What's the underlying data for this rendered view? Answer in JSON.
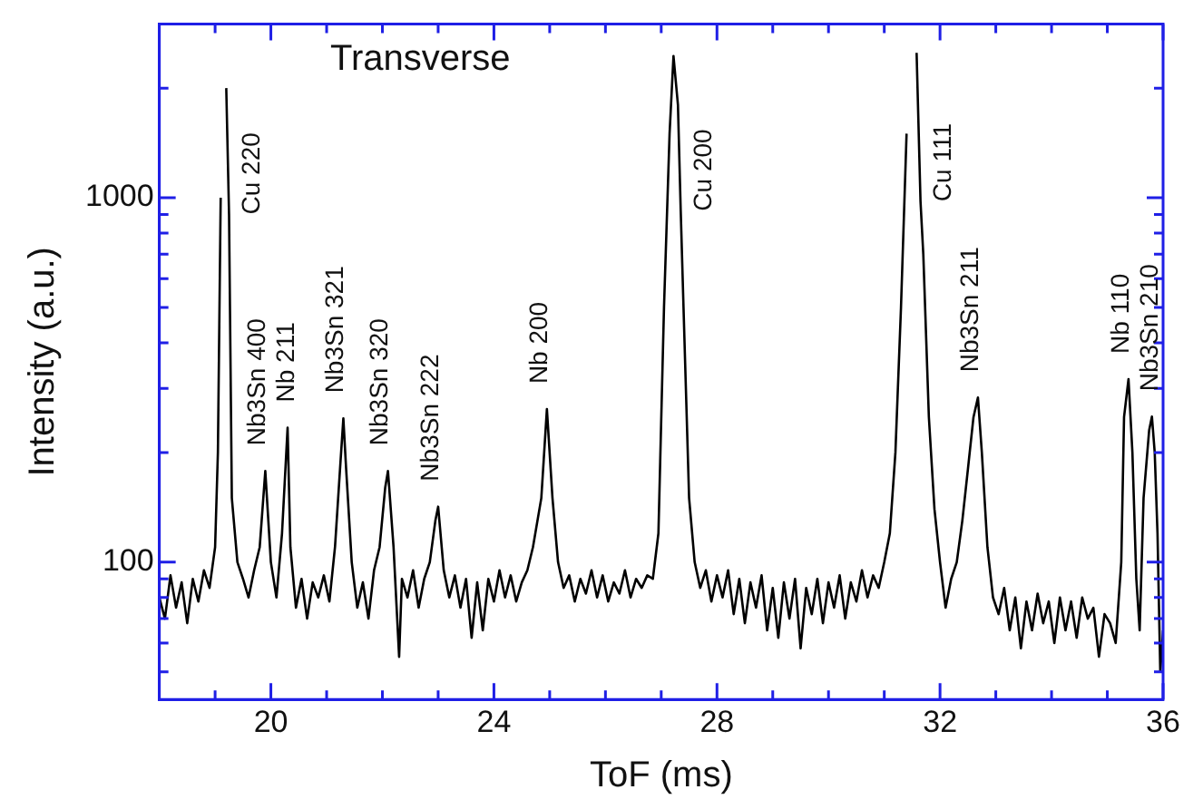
{
  "chart_data": {
    "type": "line",
    "title": "Transverse",
    "xlabel": "ToF (ms)",
    "ylabel": "Intensity (a.u.)",
    "log": "y",
    "grid": false,
    "legend": false,
    "marker": "none",
    "line_style": "solid",
    "xlim": [
      18,
      36
    ],
    "xticks": [
      {
        "value": 19,
        "label": null
      },
      20,
      {
        "value": 21,
        "label": null
      },
      {
        "value": 22,
        "label": null
      },
      {
        "value": 23,
        "label": null
      },
      24,
      {
        "value": 25,
        "label": null
      },
      {
        "value": 26,
        "label": null
      },
      {
        "value": 27,
        "label": null
      },
      28,
      {
        "value": 29,
        "label": null
      },
      {
        "value": 30,
        "label": null
      },
      {
        "value": 31,
        "label": null
      },
      32,
      {
        "value": 33,
        "label": null
      },
      {
        "value": 34,
        "label": null
      },
      {
        "value": 35,
        "label": null
      },
      36
    ],
    "ylim": [
      42,
      3000
    ],
    "yticks": [
      {
        "value": 50,
        "label": null
      },
      {
        "value": 60,
        "label": null
      },
      {
        "value": 70,
        "label": null
      },
      {
        "value": 80,
        "label": null
      },
      {
        "value": 90,
        "label": null
      },
      100,
      {
        "value": 200,
        "label": null
      },
      {
        "value": 300,
        "label": null
      },
      {
        "value": 400,
        "label": null
      },
      {
        "value": 500,
        "label": null
      },
      {
        "value": 600,
        "label": null
      },
      {
        "value": 700,
        "label": null
      },
      {
        "value": 800,
        "label": null
      },
      {
        "value": 900,
        "label": null
      },
      1000,
      {
        "value": 2000,
        "label": null
      }
    ],
    "annotations": [
      {
        "text": "Cu 220",
        "x": 19.25,
        "y": 900
      },
      {
        "text": "Nb3Sn 400",
        "x": 19.9,
        "y": 178
      },
      {
        "text": "Nb 211",
        "x": 20.3,
        "y": 234
      },
      {
        "text": "Nb3Sn 321",
        "x": 21.3,
        "y": 248
      },
      {
        "text": "Nb3Sn 320",
        "x": 22.1,
        "y": 178
      },
      {
        "text": "Nb3Sn 222",
        "x": 23.0,
        "y": 142
      },
      {
        "text": "Nb 200",
        "x": 24.95,
        "y": 263
      },
      {
        "text": "Cu 200",
        "x": 27.35,
        "y": 920
      },
      {
        "text": "Cu 111",
        "x": 31.65,
        "y": 977
      },
      {
        "text": "Nb3Sn 211",
        "x": 32.68,
        "y": 283
      },
      {
        "text": "Nb 110",
        "x": 35.38,
        "y": 318
      },
      {
        "text": "Nb3Sn 210",
        "x": 35.8,
        "y": 251
      }
    ],
    "series": [
      {
        "color": "#000000",
        "x": [
          18.0,
          18.1,
          18.2,
          18.3,
          18.4,
          18.5,
          18.6,
          18.7,
          18.8,
          18.9,
          19.0,
          19.05,
          19.1,
          19.15,
          19.2,
          19.25,
          19.3,
          19.4,
          19.5,
          19.6,
          19.7,
          19.8,
          19.9,
          20.0,
          20.1,
          20.2,
          20.3,
          20.35,
          20.45,
          20.55,
          20.65,
          20.75,
          20.85,
          20.95,
          21.05,
          21.15,
          21.25,
          21.3,
          21.35,
          21.45,
          21.55,
          21.65,
          21.75,
          21.85,
          21.95,
          22.05,
          22.1,
          22.2,
          22.3,
          22.35,
          22.45,
          22.55,
          22.65,
          22.75,
          22.85,
          22.95,
          23.0,
          23.1,
          23.2,
          23.3,
          23.4,
          23.5,
          23.6,
          23.7,
          23.8,
          23.9,
          24.0,
          24.1,
          24.2,
          24.3,
          24.4,
          24.5,
          24.6,
          24.7,
          24.85,
          24.95,
          25.05,
          25.15,
          25.25,
          25.35,
          25.45,
          25.55,
          25.65,
          25.75,
          25.85,
          25.95,
          26.05,
          26.15,
          26.25,
          26.35,
          26.45,
          26.55,
          26.65,
          26.75,
          26.85,
          26.95,
          27.05,
          27.15,
          27.22,
          27.3,
          27.35,
          27.4,
          27.5,
          27.6,
          27.7,
          27.8,
          27.9,
          28.0,
          28.1,
          28.2,
          28.3,
          28.4,
          28.5,
          28.6,
          28.7,
          28.8,
          28.9,
          29.0,
          29.1,
          29.2,
          29.3,
          29.4,
          29.5,
          29.6,
          29.7,
          29.8,
          29.9,
          30.0,
          30.1,
          30.2,
          30.3,
          30.4,
          30.5,
          30.6,
          30.7,
          30.8,
          30.9,
          31.0,
          31.1,
          31.2,
          31.3,
          31.4,
          31.5,
          31.58,
          31.65,
          31.7,
          31.8,
          31.9,
          32.0,
          32.1,
          32.2,
          32.3,
          32.4,
          32.5,
          32.6,
          32.68,
          32.75,
          32.85,
          32.95,
          33.05,
          33.15,
          33.25,
          33.35,
          33.45,
          33.55,
          33.65,
          33.75,
          33.85,
          33.95,
          34.05,
          34.15,
          34.25,
          34.35,
          34.45,
          34.55,
          34.65,
          34.75,
          34.85,
          34.95,
          35.05,
          35.15,
          35.25,
          35.3,
          35.38,
          35.45,
          35.52,
          35.58,
          35.65,
          35.75,
          35.8,
          35.85,
          35.9,
          35.95,
          36.0
        ],
        "values": [
          80,
          70,
          92,
          75,
          88,
          68,
          90,
          78,
          95,
          85,
          110,
          200,
          1000,
          null,
          2000,
          900,
          150,
          100,
          90,
          80,
          95,
          110,
          178,
          100,
          80,
          120,
          234,
          110,
          75,
          90,
          70,
          88,
          80,
          92,
          78,
          110,
          190,
          248,
          180,
          100,
          75,
          88,
          70,
          95,
          110,
          160,
          178,
          110,
          55,
          90,
          80,
          95,
          75,
          90,
          100,
          130,
          142,
          95,
          80,
          92,
          75,
          90,
          62,
          88,
          65,
          90,
          78,
          95,
          80,
          92,
          78,
          88,
          95,
          110,
          150,
          263,
          150,
          100,
          85,
          92,
          78,
          90,
          82,
          95,
          80,
          92,
          78,
          88,
          82,
          95,
          80,
          90,
          85,
          92,
          90,
          120,
          500,
          1500,
          2450,
          1800,
          920,
          500,
          150,
          100,
          85,
          95,
          78,
          92,
          80,
          95,
          72,
          90,
          68,
          88,
          75,
          92,
          65,
          85,
          62,
          88,
          70,
          90,
          58,
          85,
          72,
          90,
          68,
          88,
          75,
          92,
          70,
          88,
          78,
          95,
          80,
          92,
          85,
          100,
          120,
          200,
          500,
          1500,
          null,
          2500,
          977,
          700,
          250,
          140,
          100,
          75,
          90,
          100,
          130,
          180,
          250,
          283,
          200,
          110,
          80,
          72,
          85,
          65,
          80,
          58,
          78,
          65,
          82,
          68,
          78,
          60,
          80,
          65,
          78,
          62,
          80,
          70,
          75,
          55,
          72,
          68,
          60,
          100,
          250,
          318,
          200,
          90,
          65,
          150,
          230,
          251,
          200,
          120,
          50,
          65
        ]
      }
    ]
  }
}
